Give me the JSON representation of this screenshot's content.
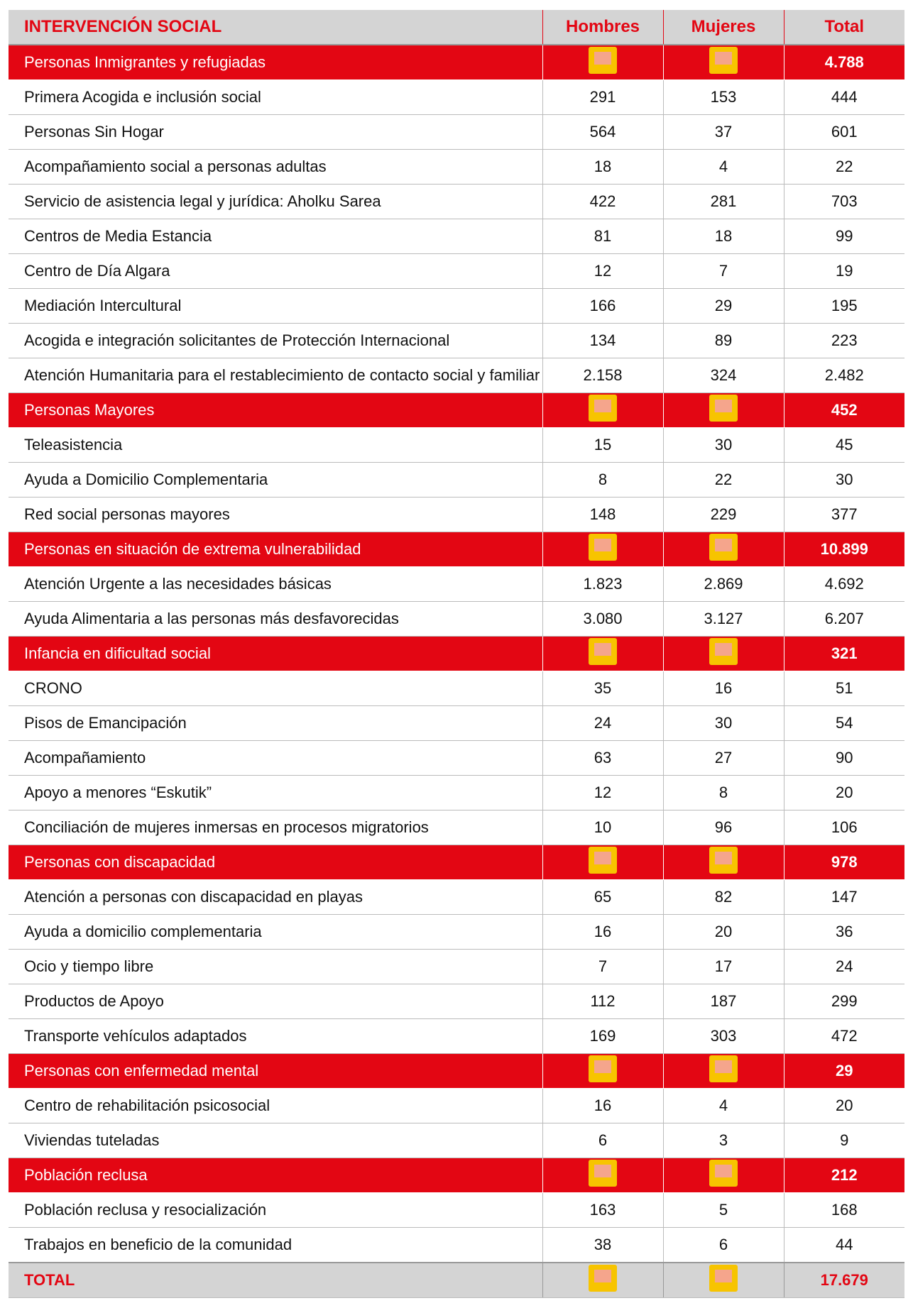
{
  "header": {
    "title": "INTERVENCIÓN SOCIAL",
    "columns": [
      "Hombres",
      "Mujeres",
      "Total"
    ]
  },
  "sections": [
    {
      "name": "Personas Inmigrantes y refugiadas",
      "total": "4.788",
      "rows": [
        [
          "Primera Acogida e inclusión social",
          "291",
          "153",
          "444"
        ],
        [
          "Personas Sin Hogar",
          "564",
          "37",
          "601"
        ],
        [
          "Acompañamiento social a personas adultas",
          "18",
          "4",
          "22"
        ],
        [
          "Servicio de asistencia legal y jurídica: Aholku Sarea",
          "422",
          "281",
          "703"
        ],
        [
          "Centros de Media Estancia",
          "81",
          "18",
          "99"
        ],
        [
          "Centro de Día Algara",
          "12",
          "7",
          "19"
        ],
        [
          "Mediación Intercultural",
          "166",
          "29",
          "195"
        ],
        [
          "Acogida e integración solicitantes de Protección Internacional",
          "134",
          "89",
          "223"
        ],
        [
          "Atención Humanitaria para el restablecimiento de contacto social y familiar",
          "2.158",
          "324",
          "2.482"
        ]
      ]
    },
    {
      "name": "Personas Mayores",
      "total": "452",
      "rows": [
        [
          "Teleasistencia",
          "15",
          "30",
          "45"
        ],
        [
          "Ayuda a Domicilio Complementaria",
          "8",
          "22",
          "30"
        ],
        [
          "Red social personas mayores",
          "148",
          "229",
          "377"
        ]
      ]
    },
    {
      "name": "Personas en situación de extrema vulnerabilidad",
      "total": "10.899",
      "rows": [
        [
          "Atención Urgente a las necesidades básicas",
          "1.823",
          "2.869",
          "4.692"
        ],
        [
          "Ayuda Alimentaria a las personas más desfavorecidas",
          "3.080",
          "3.127",
          "6.207"
        ]
      ]
    },
    {
      "name": "Infancia en dificultad social",
      "total": "321",
      "rows": [
        [
          "CRONO",
          "35",
          "16",
          "51"
        ],
        [
          "Pisos de Emancipación",
          "24",
          "30",
          "54"
        ],
        [
          "Acompañamiento",
          "63",
          "27",
          "90"
        ],
        [
          "Apoyo a menores “Eskutik”",
          "12",
          "8",
          "20"
        ],
        [
          "Conciliación de mujeres inmersas en procesos migratorios",
          "10",
          "96",
          "106"
        ]
      ]
    },
    {
      "name": "Personas con discapacidad",
      "total": "978",
      "rows": [
        [
          "Atención a personas con discapacidad en playas",
          "65",
          "82",
          "147"
        ],
        [
          "Ayuda  a domicilio complementaria",
          "16",
          "20",
          "36"
        ],
        [
          "Ocio y tiempo libre",
          "7",
          "17",
          "24"
        ],
        [
          "Productos de Apoyo",
          "112",
          "187",
          "299"
        ],
        [
          "Transporte vehículos adaptados",
          "169",
          "303",
          "472"
        ]
      ]
    },
    {
      "name": "Personas con enfermedad mental",
      "total": "29",
      "rows": [
        [
          "Centro de rehabilitación psicosocial",
          "16",
          "4",
          "20"
        ],
        [
          "Viviendas tuteladas",
          "6",
          "3",
          "9"
        ]
      ]
    },
    {
      "name": "Población reclusa",
      "total": "212",
      "rows": [
        [
          "Población reclusa y resocialización",
          "163",
          "5",
          "168"
        ],
        [
          "Trabajos en beneficio de la comunidad",
          "38",
          "6",
          "44"
        ]
      ]
    }
  ],
  "total": {
    "label": "TOTAL",
    "value": "17.679"
  }
}
